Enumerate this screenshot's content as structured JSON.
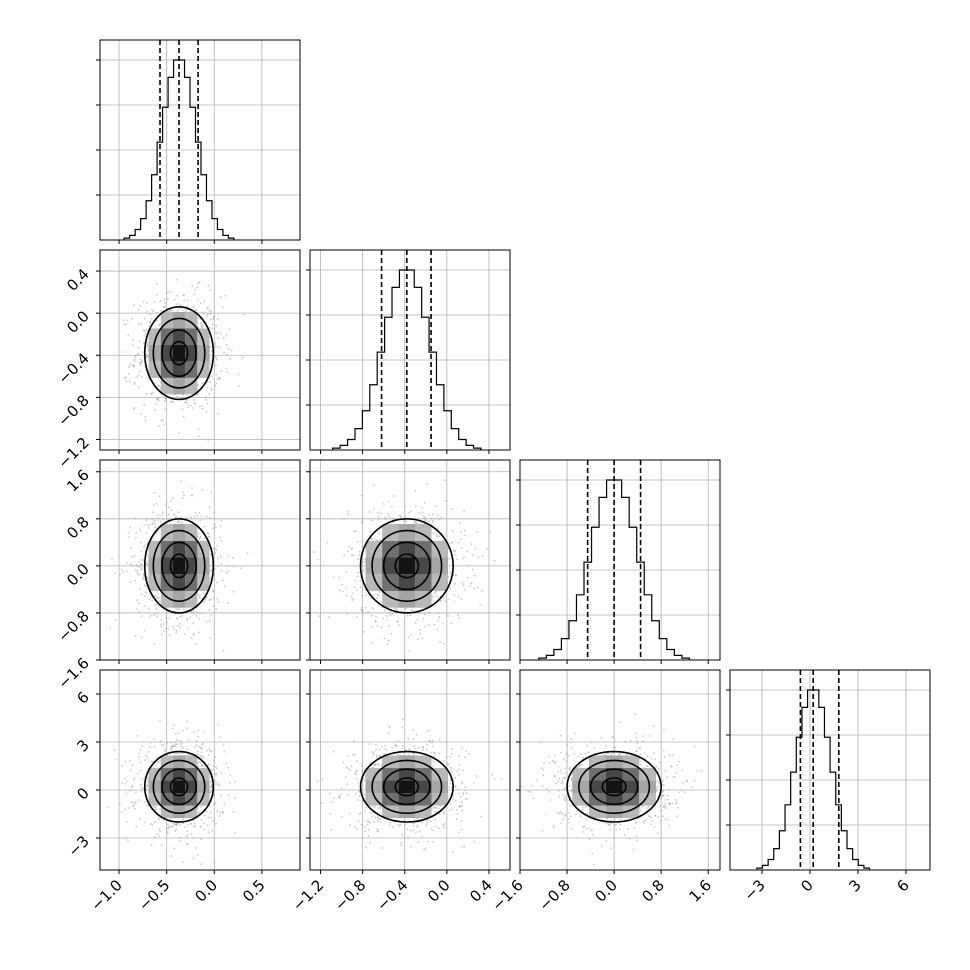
{
  "chart_data": {
    "type": "corner",
    "n_params": 4,
    "params": [
      {
        "range": [
          -1.2,
          0.9
        ],
        "median": -0.37,
        "q16": -0.57,
        "q84": -0.17,
        "sigma": 0.18,
        "ticks": [
          -1.0,
          -0.5,
          0.0,
          0.5
        ],
        "tick_labels": [
          "−1.0",
          "−0.5",
          "0.0",
          "0.5"
        ]
      },
      {
        "range": [
          -1.3,
          0.6
        ],
        "median": -0.38,
        "q16": -0.62,
        "q84": -0.15,
        "sigma": 0.22,
        "ticks": [
          -1.2,
          -0.8,
          -0.4,
          0.0,
          0.4
        ],
        "tick_labels": [
          "−1.2",
          "−0.8",
          "−0.4",
          "0.0",
          "0.4"
        ]
      },
      {
        "range": [
          -1.6,
          1.8
        ],
        "median": 0.0,
        "q16": -0.45,
        "q84": 0.45,
        "sigma": 0.4,
        "ticks": [
          -1.6,
          -0.8,
          0.0,
          0.8,
          1.6
        ],
        "tick_labels": [
          "−1.6",
          "−0.8",
          "0.0",
          "0.8",
          "1.6"
        ]
      },
      {
        "range": [
          -5,
          7.5
        ],
        "median": 0.2,
        "q16": -0.6,
        "q84": 1.8,
        "sigma": 1.1,
        "ticks": [
          -3,
          0,
          3,
          6
        ],
        "tick_labels": [
          "−3",
          "0",
          "3",
          "6"
        ]
      }
    ],
    "grid": true,
    "quantile_lines": "dashed",
    "contours": true
  }
}
